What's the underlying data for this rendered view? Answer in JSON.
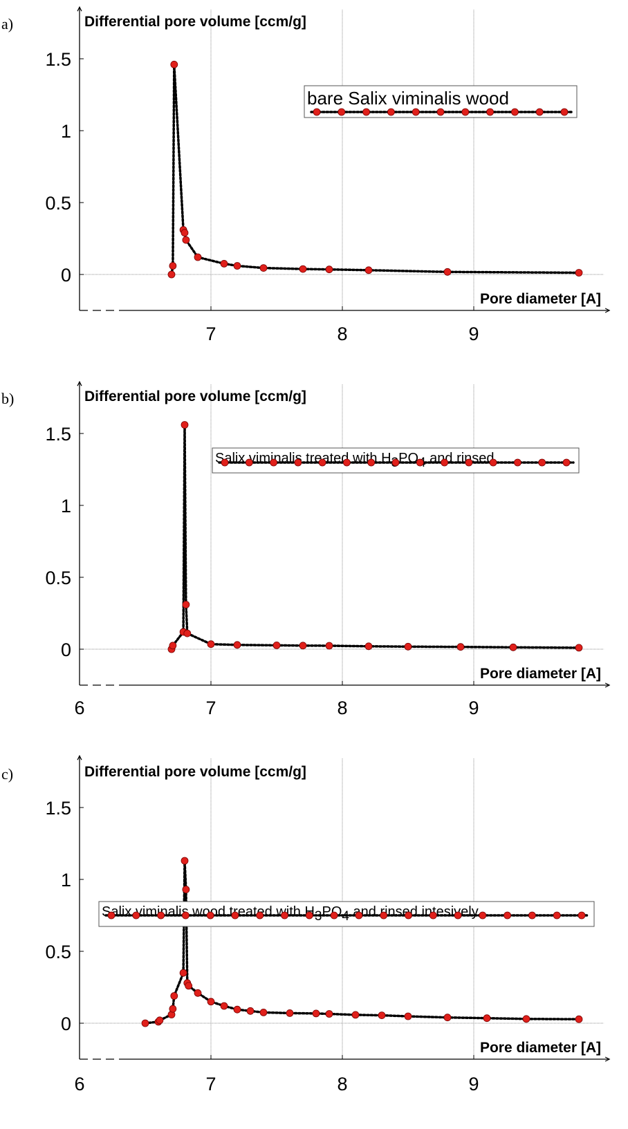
{
  "colors": {
    "marker_fill": "#e0201b",
    "marker_stroke": "#7a0000",
    "line": "#000000",
    "grid": "#8c8c8c",
    "axis": "#000000"
  },
  "chart_data": [
    {
      "type": "line",
      "panel_label": "a)",
      "ylabel": "Differential pore volume [ccm/g]",
      "xlabel": "Pore diameter [A]",
      "xlim": [
        6.0,
        9.99
      ],
      "ylim": [
        -0.25,
        1.85
      ],
      "xticks": [
        7,
        8,
        9
      ],
      "yticks": [
        1.5,
        1,
        0.5,
        0
      ],
      "xtick_labels": [
        "7",
        "8",
        "9"
      ],
      "ytick_labels": [
        "1.5",
        "1",
        "0.5",
        "0"
      ],
      "grid": true,
      "legend_placement": "top-right",
      "series": [
        {
          "name": "bare Salix viminalis wood",
          "x": [
            6.7,
            6.71,
            6.72,
            6.79,
            6.8,
            6.81,
            6.9,
            7.1,
            7.2,
            7.4,
            7.7,
            7.9,
            8.2,
            8.8,
            9.8
          ],
          "y": [
            0.0,
            0.06,
            1.46,
            0.31,
            0.29,
            0.24,
            0.12,
            0.075,
            0.06,
            0.045,
            0.038,
            0.035,
            0.03,
            0.018,
            0.012
          ]
        }
      ]
    },
    {
      "type": "line",
      "panel_label": "b)",
      "ylabel": "Differential pore volume [ccm/g]",
      "xlabel": "Pore diameter [A]",
      "xlim": [
        6.0,
        9.99
      ],
      "ylim": [
        -0.25,
        1.85
      ],
      "xticks": [
        6,
        7,
        8,
        9
      ],
      "yticks": [
        1.5,
        1,
        0.5,
        0
      ],
      "xtick_labels": [
        "6",
        "7",
        "8",
        "9"
      ],
      "ytick_labels": [
        "1.5",
        "1",
        "0.5",
        "0"
      ],
      "grid": true,
      "legend_placement": "top-right",
      "series": [
        {
          "name": "Salix viminalis treated with H3PO4 and rinsed",
          "x": [
            6.7,
            6.71,
            6.79,
            6.8,
            6.81,
            6.82,
            7.0,
            7.2,
            7.5,
            7.7,
            7.9,
            8.2,
            8.5,
            8.9,
            9.3,
            9.8
          ],
          "y": [
            0.0,
            0.025,
            0.12,
            1.56,
            0.31,
            0.11,
            0.035,
            0.03,
            0.027,
            0.025,
            0.024,
            0.02,
            0.018,
            0.016,
            0.013,
            0.01
          ]
        }
      ]
    },
    {
      "type": "line",
      "panel_label": "c)",
      "ylabel": "Differential pore volume [ccm/g]",
      "xlabel": "Pore diameter [A]",
      "xlim": [
        6.0,
        9.99
      ],
      "ylim": [
        -0.25,
        1.85
      ],
      "xticks": [
        6,
        7,
        8,
        9
      ],
      "yticks": [
        1.5,
        1,
        0.5,
        0
      ],
      "xtick_labels": [
        "6",
        "7",
        "8",
        "9"
      ],
      "ytick_labels": [
        "1.5",
        "1",
        "0.5",
        "0"
      ],
      "grid": true,
      "legend_placement": "top",
      "series": [
        {
          "name": "Salix viminalis wood treated with H3PO4 and rinsed intesively",
          "x": [
            6.5,
            6.6,
            6.61,
            6.7,
            6.71,
            6.72,
            6.79,
            6.8,
            6.81,
            6.82,
            6.83,
            6.9,
            7.0,
            7.1,
            7.2,
            7.3,
            7.4,
            7.6,
            7.8,
            7.9,
            8.1,
            8.3,
            8.5,
            8.8,
            9.1,
            9.4,
            9.8
          ],
          "y": [
            0.0,
            0.01,
            0.02,
            0.06,
            0.1,
            0.19,
            0.35,
            1.13,
            0.93,
            0.28,
            0.26,
            0.21,
            0.15,
            0.12,
            0.095,
            0.085,
            0.075,
            0.07,
            0.068,
            0.065,
            0.058,
            0.055,
            0.048,
            0.04,
            0.035,
            0.03,
            0.028
          ]
        }
      ]
    }
  ],
  "legend_rich": [
    {
      "before": "bare Salix viminalis wood",
      "sub": "",
      "mid": "",
      "after": ""
    },
    {
      "before": "Salix viminalis treated with H",
      "sub": "3",
      "mid": "PO",
      "sub2": "4",
      "after": " and rinsed"
    },
    {
      "before": "Salix viminalis wood treated with H",
      "sub": "3",
      "mid": "PO",
      "sub2": "4",
      "after": " and rinsed intesively"
    }
  ]
}
